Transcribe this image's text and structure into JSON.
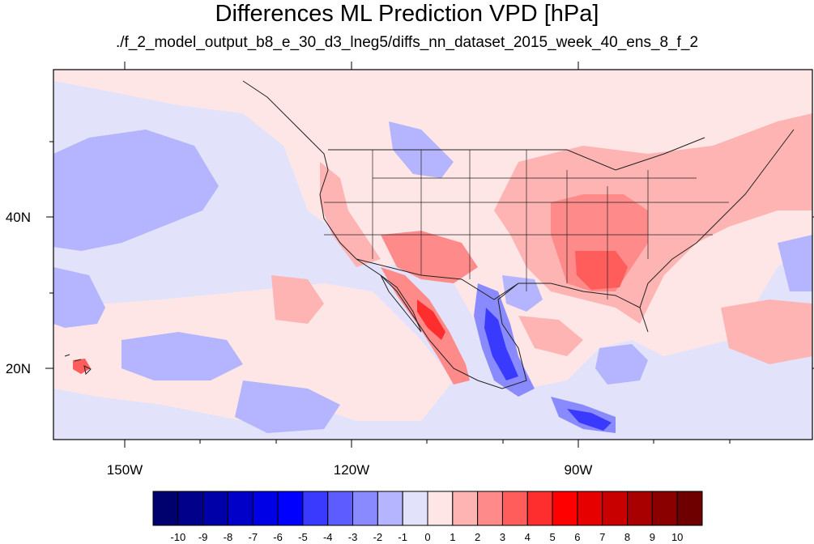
{
  "title": "Differences ML Prediction VPD [hPa]",
  "subtitle": "./f_2_model_output_b8_e_30_d3_lneg5/diffs_nn_dataset_2015_week_40_ens_8_f_2",
  "lat_labels": [
    "40N",
    "20N"
  ],
  "lon_labels": [
    "150W",
    "120W",
    "90W"
  ],
  "colorbar": {
    "labels": [
      "-10",
      "-9",
      "-8",
      "-7",
      "-6",
      "-5",
      "-4",
      "-3",
      "-2",
      "-1",
      "0",
      "1",
      "2",
      "3",
      "4",
      "5",
      "6",
      "7",
      "8",
      "9",
      "10"
    ],
    "colors": [
      "#00006e",
      "#00008a",
      "#0000a8",
      "#0000c8",
      "#0000e6",
      "#0000ff",
      "#3a3aff",
      "#5c5cff",
      "#8a8aff",
      "#b4b4ff",
      "#e2e2fa",
      "#ffe6e6",
      "#ffb4b4",
      "#ff8a8a",
      "#ff5c5c",
      "#ff2e2e",
      "#ff0000",
      "#e60000",
      "#c80000",
      "#a80000",
      "#8a0000",
      "#6e0000"
    ]
  },
  "map": {
    "colors": {
      "near_zero": "#ffe6e6",
      "slight_negative": "#e2e2fa",
      "negative": "#b4b4ff",
      "moderate_negative": "#8a8aff",
      "strong_negative": "#3a3aff",
      "slight_positive": "#ffb4b4",
      "positive": "#ff8a8a",
      "strong_positive": "#ff5c5c",
      "very_strong_positive": "#ff2e2e"
    }
  }
}
